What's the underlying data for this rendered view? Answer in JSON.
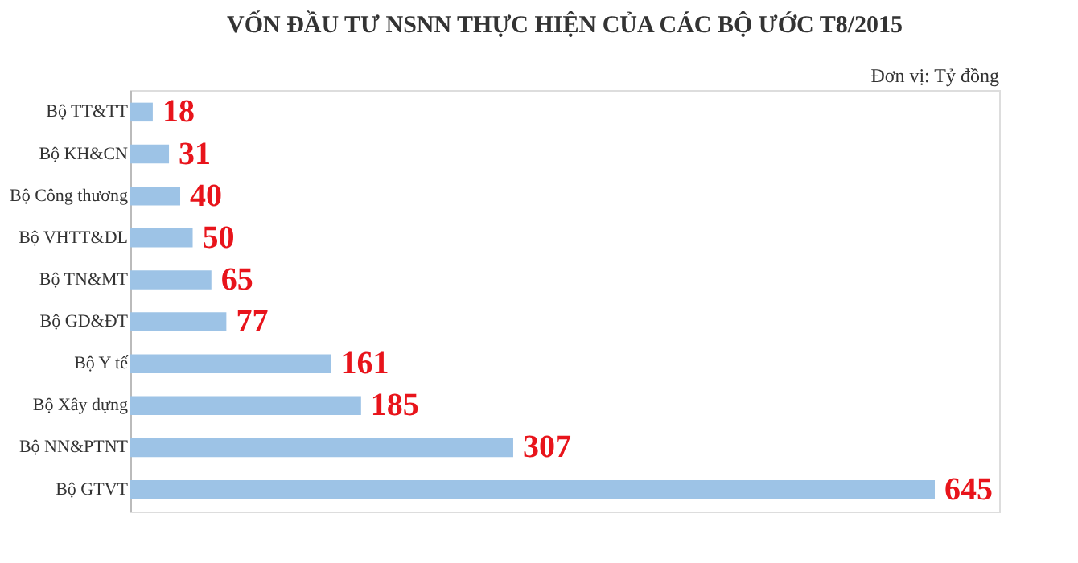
{
  "chart_data": {
    "type": "bar",
    "orientation": "horizontal",
    "title": "VỐN ĐẦU TƯ NSNN THỰC HIỆN CỦA CÁC BỘ ƯỚC T8/2015",
    "categories": [
      "Bộ TT&TT",
      "Bộ KH&CN",
      "Bộ Công thương",
      "Bộ VHTT&DL",
      "Bộ TN&MT",
      "Bộ GD&ĐT",
      "Bộ Y tế",
      "Bộ Xây dựng",
      "Bộ NN&PTNT",
      "Bộ GTVT"
    ],
    "values": [
      18,
      31,
      40,
      50,
      65,
      77,
      161,
      185,
      307,
      645
    ],
    "color": "#9dc3e6",
    "data_labels": true,
    "annotations": [
      "Đơn vị: Tỷ đồng"
    ],
    "grid": false
  }
}
